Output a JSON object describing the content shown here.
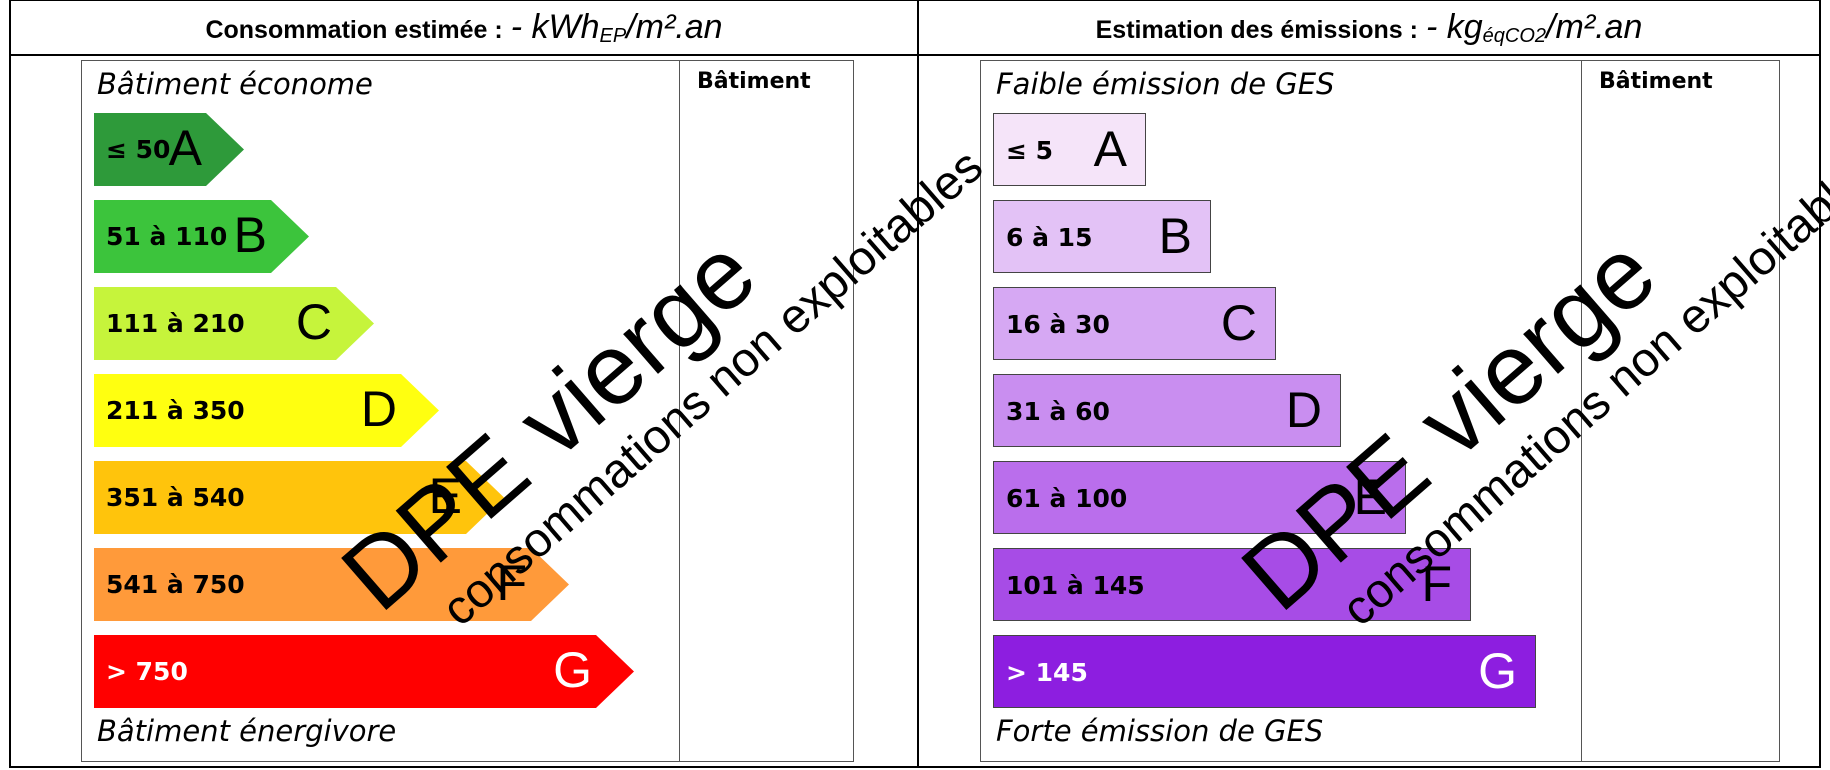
{
  "energy": {
    "header_label": "Consommation estimée :",
    "header_value": "- kWh",
    "header_sub": "EP",
    "header_unit": "/m².an",
    "column_title": "Bâtiment",
    "top_caption": "Bâtiment économe",
    "bottom_caption": "Bâtiment énergivore",
    "classes": [
      {
        "range": "≤ 50",
        "letter": "A",
        "color": "#2e9a3a",
        "text_color": "#000000"
      },
      {
        "range": "51 à 110",
        "letter": "B",
        "color": "#3cc43c",
        "text_color": "#000000"
      },
      {
        "range": "111 à 210",
        "letter": "C",
        "color": "#c6f43b",
        "text_color": "#000000"
      },
      {
        "range": "211 à 350",
        "letter": "D",
        "color": "#ffff10",
        "text_color": "#000000"
      },
      {
        "range": "351 à 540",
        "letter": "E",
        "color": "#ffc40c",
        "text_color": "#000000"
      },
      {
        "range": "541 à 750",
        "letter": "F",
        "color": "#ff9a3a",
        "text_color": "#000000"
      },
      {
        "range": "> 750",
        "letter": "G",
        "color": "#ff0000",
        "text_color": "#ffffff"
      }
    ]
  },
  "emissions": {
    "header_label": "Estimation des émissions :",
    "header_value": "- kg",
    "header_sub": "éqCO2",
    "header_unit": "/m².an",
    "column_title": "Bâtiment",
    "top_caption": "Faible émission de GES",
    "bottom_caption": "Forte émission de GES",
    "classes": [
      {
        "range": "≤ 5",
        "letter": "A",
        "color": "#f5e4f9",
        "text_color": "#000000"
      },
      {
        "range": "6 à 15",
        "letter": "B",
        "color": "#e3c2f6",
        "text_color": "#000000"
      },
      {
        "range": "16 à 30",
        "letter": "C",
        "color": "#d6a8f3",
        "text_color": "#000000"
      },
      {
        "range": "31 à 60",
        "letter": "D",
        "color": "#c98ef0",
        "text_color": "#000000"
      },
      {
        "range": "61 à 100",
        "letter": "E",
        "color": "#ba6eec",
        "text_color": "#000000"
      },
      {
        "range": "101 à 145",
        "letter": "F",
        "color": "#a74ce6",
        "text_color": "#000000"
      },
      {
        "range": "> 145",
        "letter": "G",
        "color": "#8d1ee0",
        "text_color": "#ffffff"
      }
    ]
  },
  "stamp": {
    "title": "DPE vierge",
    "subtitle": "consommations non exploitables"
  }
}
